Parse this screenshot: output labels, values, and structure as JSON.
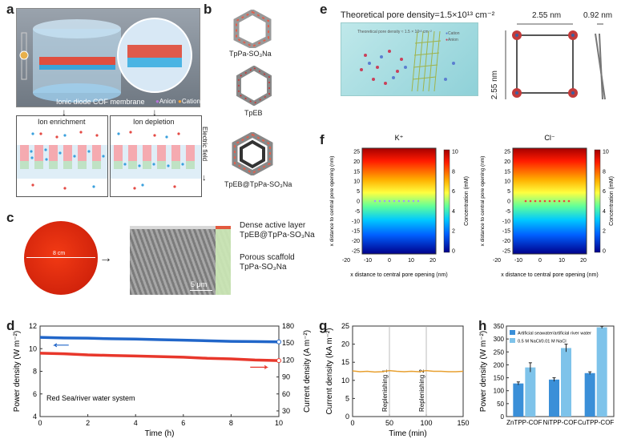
{
  "panel_labels": {
    "a": "a",
    "b": "b",
    "c": "c",
    "d": "d",
    "e": "e",
    "f": "f",
    "g": "g",
    "h": "h"
  },
  "panel_a": {
    "membrane_label": "Ionic diode COF membrane",
    "anion_label": "Anion",
    "cation_label": "Cation",
    "enrichment_label": "Ion enrichment",
    "depletion_label": "Ion depletion",
    "field_label": "Electric field"
  },
  "panel_b": {
    "structures": [
      "TpPa-SO₃Na",
      "TpEB",
      "TpEB@TpPa-SO₃Na"
    ]
  },
  "panel_c": {
    "diameter_label": "8 cm",
    "dense_layer_title": "Dense active layer",
    "dense_layer_material": "TpEB@TpPa-SO₃Na",
    "porous_title": "Porous scaffold",
    "porous_material": "TpPa-SO₃Na",
    "scale_bar": "5 μm"
  },
  "panel_e": {
    "title": "Theoretical pore density=1.5×10¹³ cm⁻²",
    "inset_text": "Theoretical pore density ≈ 1.5 × 10¹³ cm⁻²",
    "legend_cation": "Cation",
    "legend_anion": "Anion",
    "width_label": "2.55 nm",
    "height_label": "2.55 nm",
    "thickness_label": "0.92 nm"
  },
  "panel_f": {
    "maps": [
      {
        "title": "K⁺",
        "ylabel": "x distance to central pore opening (nm)",
        "xlabel": "x distance to central pore opening (nm)",
        "cbar_label": "Concentration (mM)",
        "xticks": [
          "-20",
          "-10",
          "0",
          "10",
          "20"
        ],
        "yticks": [
          "25",
          "20",
          "15",
          "10",
          "5",
          "0",
          "-5",
          "-10",
          "-15",
          "-20",
          "-25"
        ],
        "cticks": [
          "10",
          "8",
          "6",
          "4",
          "2",
          "0"
        ]
      },
      {
        "title": "Cl⁻",
        "ylabel": "x distance to central pore opening (nm)",
        "xlabel": "x distance to central pore opening (nm)",
        "cbar_label": "Concentration (mM)",
        "xticks": [
          "-20",
          "-10",
          "0",
          "10",
          "20"
        ],
        "yticks": [
          "25",
          "20",
          "15",
          "10",
          "5",
          "0",
          "-5",
          "-10",
          "-15",
          "-20",
          "-25"
        ],
        "cticks": [
          "10",
          "8",
          "6",
          "4",
          "2",
          "0"
        ]
      }
    ]
  },
  "chart_data": [
    {
      "id": "d",
      "type": "line",
      "title": "",
      "xlabel": "Time (h)",
      "ylabel": "Power density (W m⁻²)",
      "y2label": "Current density (A m⁻²)",
      "xlim": [
        0,
        10
      ],
      "ylim": [
        4,
        12
      ],
      "y2lim": [
        20,
        180
      ],
      "xticks": [
        "0",
        "2",
        "4",
        "6",
        "8",
        "10"
      ],
      "yticks": [
        "4",
        "6",
        "8",
        "10",
        "12"
      ],
      "y2ticks": [
        "30",
        "60",
        "90",
        "120",
        "150",
        "180"
      ],
      "annotation": "Red Sea/river water system",
      "series": [
        {
          "name": "Current density",
          "axis": "right",
          "color": "#2166c9",
          "x": [
            0,
            1,
            2,
            3,
            4,
            5,
            6,
            7,
            8,
            9,
            10
          ],
          "values": [
            160,
            159,
            158.5,
            157.5,
            157,
            156,
            155,
            154,
            153,
            152.5,
            152
          ]
        },
        {
          "name": "Power density",
          "axis": "left",
          "color": "#e8372b",
          "x": [
            0,
            1,
            2,
            3,
            4,
            5,
            6,
            7,
            8,
            9,
            10
          ],
          "values": [
            9.6,
            9.55,
            9.45,
            9.4,
            9.35,
            9.3,
            9.25,
            9.15,
            9.1,
            9.0,
            8.95
          ]
        }
      ]
    },
    {
      "id": "g",
      "type": "line",
      "xlabel": "Time (min)",
      "ylabel": "Current density (kA m⁻²)",
      "xlim": [
        0,
        150
      ],
      "ylim": [
        0,
        25
      ],
      "xticks": [
        "0",
        "50",
        "100",
        "150"
      ],
      "yticks": [
        "0",
        "5",
        "10",
        "15",
        "20",
        "25"
      ],
      "annotations": [
        "Replenishing 1",
        "Replenishing 2"
      ],
      "annotation_x": [
        50,
        100
      ],
      "series": [
        {
          "name": "Current density",
          "color": "#e8a030",
          "x": [
            0,
            10,
            20,
            30,
            40,
            50,
            60,
            70,
            80,
            90,
            100,
            110,
            120,
            130,
            140,
            150
          ],
          "values": [
            12.6,
            12.4,
            12.5,
            12.3,
            12.4,
            12.7,
            12.5,
            12.4,
            12.5,
            12.4,
            12.7,
            12.5,
            12.5,
            12.4,
            12.4,
            12.5
          ]
        }
      ]
    },
    {
      "id": "h",
      "type": "bar",
      "ylabel": "Power density (W m⁻²)",
      "ylim": [
        0,
        350
      ],
      "yticks": [
        "0",
        "50",
        "100",
        "150",
        "200",
        "250",
        "300",
        "350"
      ],
      "categories": [
        "ZnTPP-COF",
        "NiTPP-COF",
        "CuTPP-COF"
      ],
      "series": [
        {
          "name": "Artificial seawater/artificial river water",
          "color": "#3a8fd8",
          "values": [
            128,
            143,
            168
          ],
          "errors": [
            6,
            7,
            5
          ]
        },
        {
          "name": "0.5 M NaCl/0.01 M NaCl",
          "color": "#7ec3ea",
          "values": [
            190,
            265,
            345
          ],
          "errors": [
            18,
            15,
            4
          ]
        }
      ]
    }
  ]
}
